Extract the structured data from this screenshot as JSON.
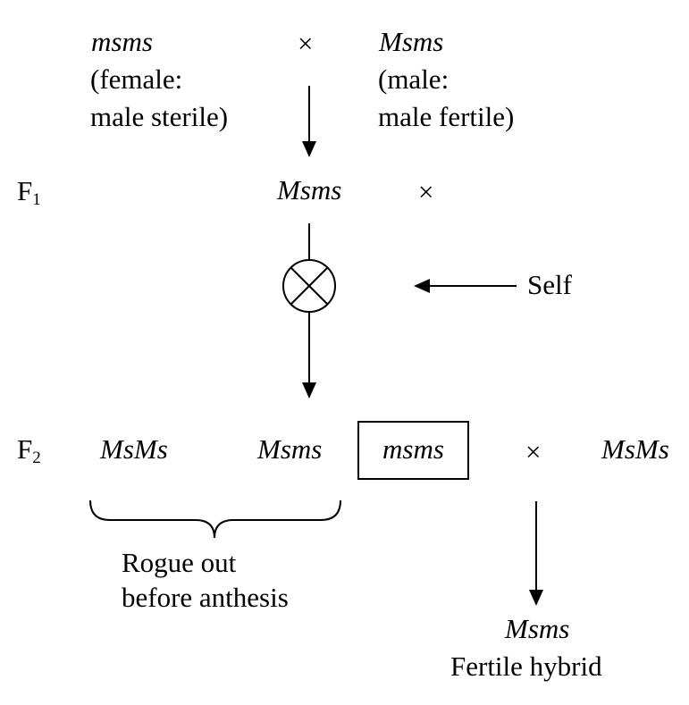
{
  "parents": {
    "female": {
      "genotype": "msms",
      "note_line1": "(female:",
      "note_line2": "male sterile)"
    },
    "cross_symbol": "×",
    "male": {
      "genotype": "Msms",
      "note_line1": "(male:",
      "note_line2": "male fertile)"
    }
  },
  "f1": {
    "label": "F",
    "label_sub": "1",
    "genotype": "Msms",
    "cross_symbol": "×",
    "self_label": "Self"
  },
  "f2": {
    "label": "F",
    "label_sub": "2",
    "genotypes": [
      "MsMs",
      "Msms",
      "msms"
    ],
    "cross_symbol": "×",
    "cross_partner": "MsMs",
    "rogue_line1": "Rogue out",
    "rogue_line2": "before anthesis"
  },
  "result": {
    "genotype": "Msms",
    "label": "Fertile hybrid"
  }
}
